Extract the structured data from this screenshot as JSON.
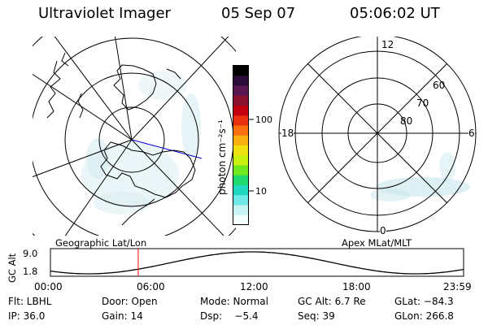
{
  "header": {
    "title": "Ultraviolet Imager",
    "date": "05 Sep 07",
    "time": "05:06:02 UT"
  },
  "left_panel": {
    "caption": "Geographic Lat/Lon"
  },
  "right_panel": {
    "caption": "Apex MLat/MLT",
    "mlt_labels": {
      "top": "12",
      "left": "18",
      "right": "6",
      "bottom": "0"
    },
    "mlat_labels": [
      "60",
      "70",
      "80"
    ]
  },
  "colorbar": {
    "unit_label": "photon cm⁻²s⁻¹",
    "ticks": [
      {
        "label": "100",
        "value": 100
      },
      {
        "label": "10",
        "value": 10
      }
    ],
    "colors": [
      "#000000",
      "#2a0c3a",
      "#5a1650",
      "#8a1030",
      "#c00010",
      "#e83010",
      "#f87010",
      "#f8b010",
      "#f0e010",
      "#c8f010",
      "#70e820",
      "#20d870",
      "#20d8c0",
      "#70e8e8",
      "#c8f4f4",
      "#f4ffff"
    ]
  },
  "altitude_track": {
    "axis_label": "GC Alt",
    "y_ticks": [
      "9.0",
      "1.8"
    ],
    "x_ticks": [
      "00:00",
      "06:00",
      "12:00",
      "18:00",
      "23:59"
    ],
    "current_time_hours": 5.1,
    "marker_color": "#ff0000"
  },
  "footer": {
    "row1": {
      "filter": "Flt: LBHL",
      "door": "Door: Open",
      "mode": "Mode: Normal",
      "gc_alt": "GC Alt: 6.7 Re",
      "glat": "GLat: −84.3"
    },
    "row2": {
      "ip": "IP: 36.0",
      "gain": "Gain: 14",
      "dsp": "Dsp:    −5.4",
      "seq": "Seq: 39",
      "glon": "GLon: 266.8"
    }
  },
  "colors": {
    "track_line": "#000000",
    "sun_line": "#0000cc",
    "aurora": "#cfe9ee"
  }
}
